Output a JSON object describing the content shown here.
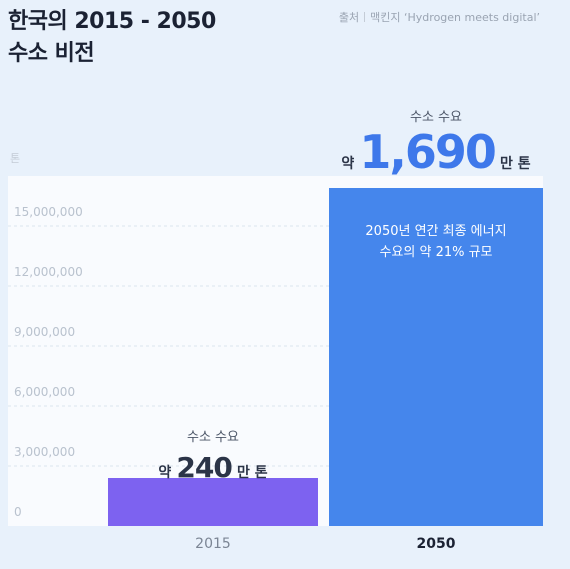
{
  "title_line1": "한국의 2015 - 2050",
  "title_line2": "수소 비전",
  "source": {
    "label": "출처",
    "text": "맥킨지 ‘Hydrogen meets digital’"
  },
  "unit": "톤",
  "colors": {
    "bar_2015": "#7d62f0",
    "bar_2050": "#4586ec",
    "accent": "#3e78ea",
    "grid": "#dce4ee",
    "tick": "#b9c2ce"
  },
  "annotations": [
    {
      "label": "수소 수요",
      "prefix": "약",
      "value": "240",
      "suffix": "만 톤"
    },
    {
      "label": "수소 수요",
      "prefix": "약",
      "value": "1,690",
      "suffix": "만 톤"
    }
  ],
  "note": {
    "line1": "2050년 연간 최종 에너지",
    "line2": "수요의 약 21% 규모"
  },
  "chart_data": {
    "type": "bar",
    "categories": [
      "2015",
      "2050"
    ],
    "values": [
      2400000,
      16900000
    ],
    "title": "한국의 2015 - 2050 수소 비전",
    "ylabel": "톤",
    "ylim": [
      0,
      18000000
    ],
    "yticks": [
      0,
      3000000,
      6000000,
      9000000,
      12000000,
      15000000
    ],
    "ytick_labels": [
      "0",
      "3,000,000",
      "6,000,000",
      "9,000,000",
      "12,000,000",
      "15,000,000"
    ],
    "grid": true
  }
}
